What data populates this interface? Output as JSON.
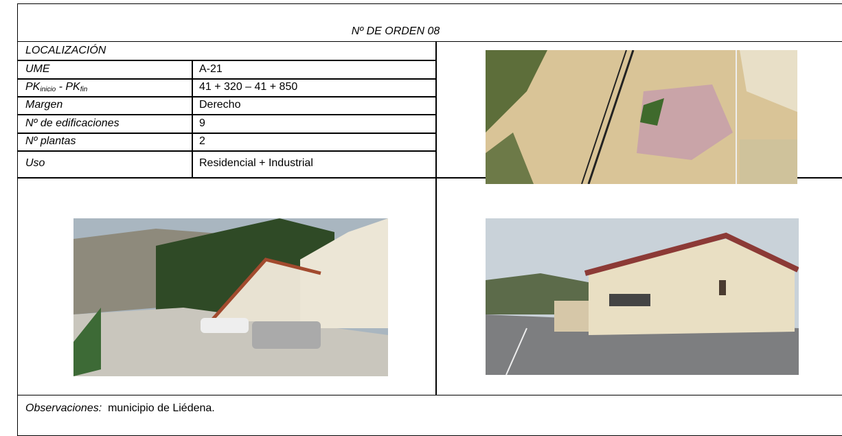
{
  "header": {
    "title": "Nº DE ORDEN 08"
  },
  "section": "LOCALIZACIÓN",
  "rows": [
    [
      "UME",
      "A-21"
    ],
    [
      {
        "main1": "PK",
        "sub1": "inicio",
        "main2": " - PK",
        "sub2": "fin"
      },
      "41 + 320 – 41 + 850"
    ],
    [
      "Margen",
      "Derecho"
    ],
    [
      "Nº de edificaciones",
      "9"
    ],
    [
      "Nº plantas",
      "2"
    ],
    [
      "Uso",
      "Residencial + Industrial"
    ]
  ],
  "observations": {
    "label": "Observaciones:",
    "text": "municipio de Liédena."
  }
}
